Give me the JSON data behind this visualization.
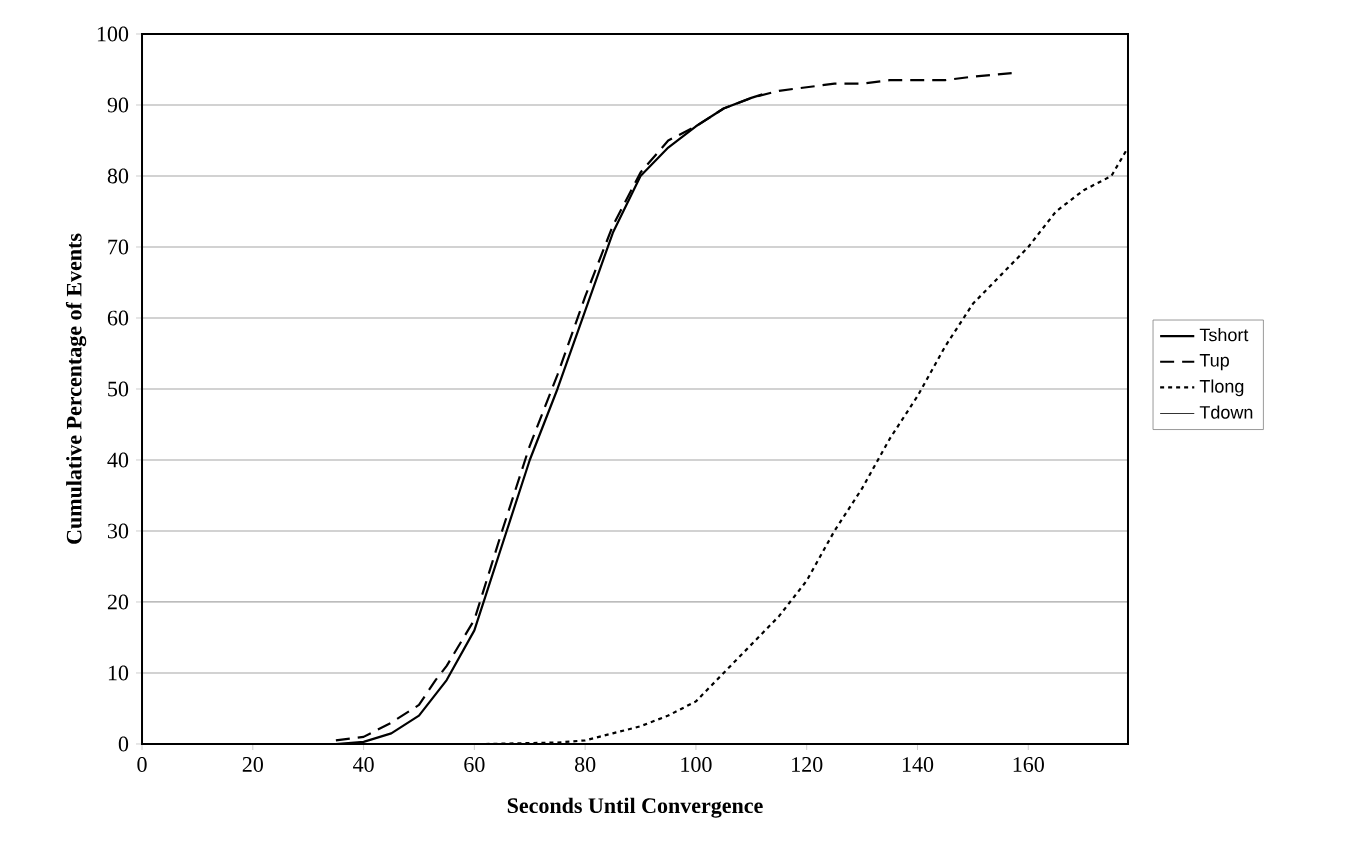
{
  "chart_data": {
    "type": "line",
    "xlabel": "Seconds Until Convergence",
    "ylabel": "Cumulative Percentage of Events",
    "xlim": [
      0,
      178
    ],
    "ylim": [
      0,
      100
    ],
    "xticks": [
      0,
      20,
      40,
      60,
      80,
      100,
      120,
      140,
      160
    ],
    "yticks": [
      0,
      10,
      20,
      30,
      40,
      50,
      60,
      70,
      80,
      90,
      100
    ],
    "grid": "y",
    "legend": "right",
    "marker": "none",
    "series": [
      {
        "name": "Tshort",
        "color": "#000000",
        "line_style": "solid",
        "x": [
          0,
          35,
          40,
          45,
          50,
          55,
          60,
          65,
          70,
          75,
          80,
          85,
          90,
          95,
          100,
          105,
          110,
          112
        ],
        "values": [
          0,
          0,
          0.3,
          1.5,
          4,
          9,
          16,
          28,
          40,
          50,
          61,
          72,
          80,
          84,
          87,
          89.5,
          91,
          91.5
        ]
      },
      {
        "name": "Tup",
        "color": "#000000",
        "line_style": "dashed",
        "x": [
          35,
          40,
          45,
          50,
          53,
          55,
          60,
          65,
          70,
          75,
          80,
          85,
          90,
          95,
          100,
          105,
          110,
          115,
          120,
          125,
          130,
          135,
          140,
          145,
          150,
          157
        ],
        "values": [
          0.5,
          1,
          3,
          5.5,
          9,
          11,
          17.5,
          30,
          42,
          52,
          63,
          73,
          80.5,
          85,
          87,
          89.5,
          91,
          92,
          92.5,
          93,
          93,
          93.5,
          93.5,
          93.5,
          94,
          94.5
        ]
      },
      {
        "name": "Tlong",
        "color": "#000000",
        "line_style": "dotted",
        "x": [
          62,
          75,
          80,
          85,
          90,
          95,
          100,
          105,
          110,
          115,
          120,
          125,
          130,
          135,
          140,
          145,
          150,
          155,
          160,
          165,
          170,
          175,
          178
        ],
        "values": [
          0,
          0.2,
          0.5,
          1.5,
          2.5,
          4,
          6,
          10,
          14,
          18,
          23,
          30,
          36,
          43,
          49,
          56,
          62,
          66,
          70,
          75,
          78,
          80,
          84
        ]
      },
      {
        "name": "Tdown"
      }
    ]
  }
}
